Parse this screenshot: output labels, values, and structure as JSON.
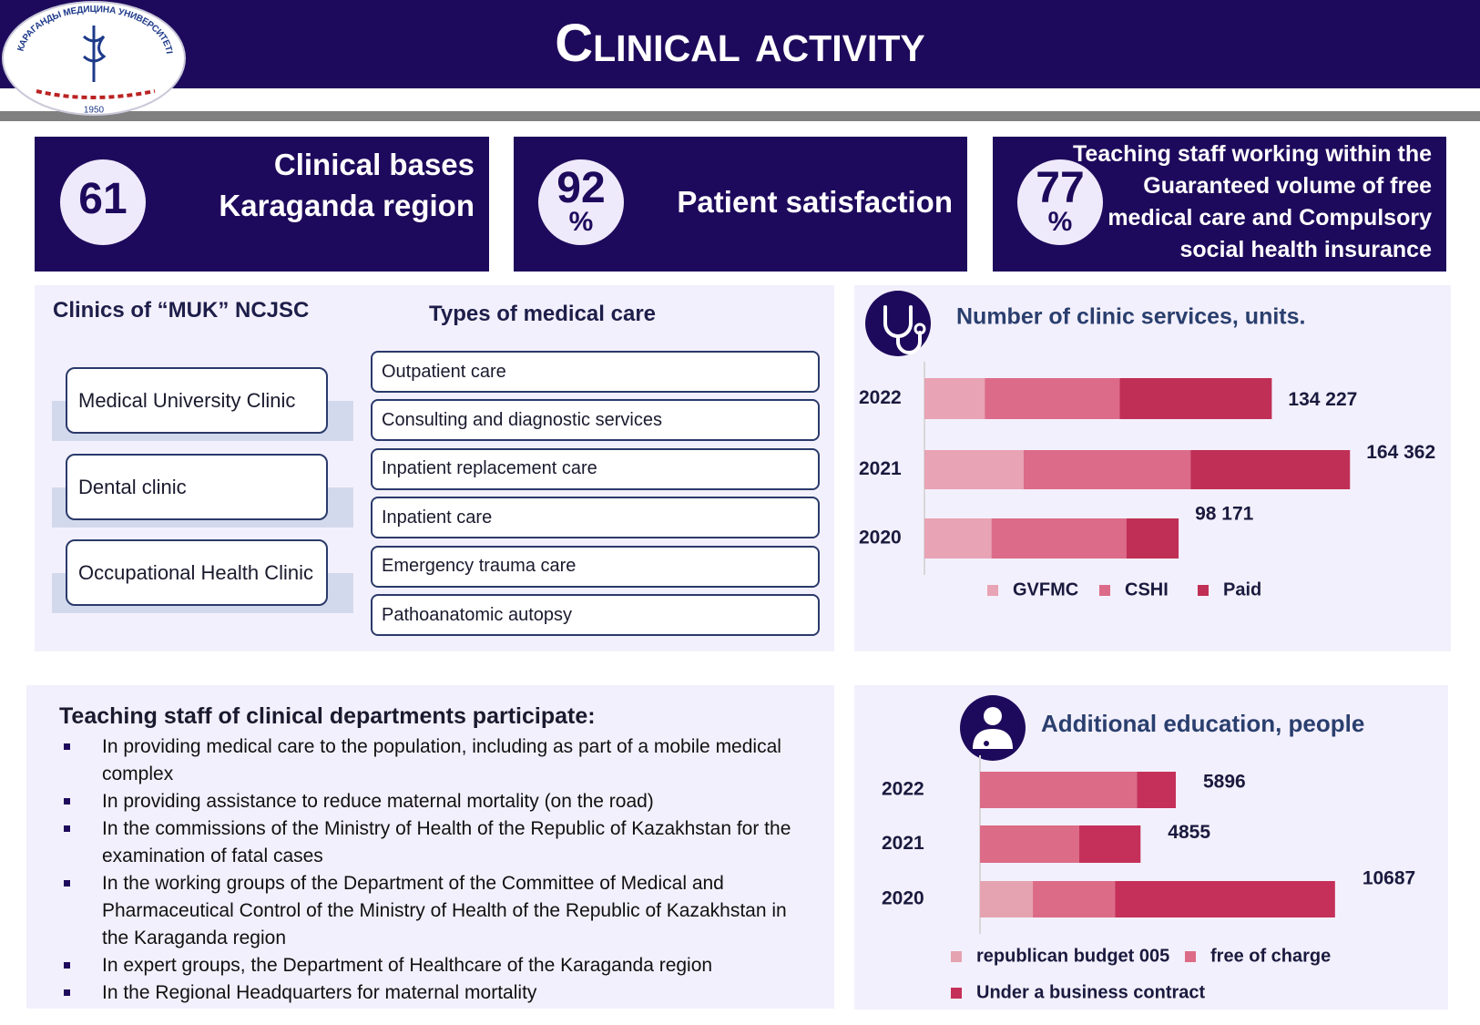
{
  "header": {
    "title": "Clinical activity",
    "logo_text": "КАРАГАНДЫ МЕДИЦИНА УНИВЕРСИТЕТІ",
    "logo_year": "1950"
  },
  "kpis": [
    {
      "value": 61,
      "lines": [
        "Clinical bases",
        "Karaganda region"
      ]
    },
    {
      "value": 92,
      "unit": "%",
      "lines": [
        "Patient satisfaction"
      ]
    },
    {
      "value": 77,
      "unit": "%",
      "lines": [
        "Teaching staff working within the",
        "Guaranteed volume of free",
        "medical care and Compulsory",
        "social health insurance"
      ]
    }
  ],
  "clinics": {
    "title": "Clinics of “MUK” NCJSC",
    "items": [
      "Medical University Clinic",
      "Dental clinic",
      "Occupational Health Clinic"
    ]
  },
  "care": {
    "title": "Types of medical care",
    "items": [
      "Outpatient care",
      "Consulting and diagnostic services",
      "Inpatient replacement care",
      "Inpatient care",
      "Emergency trauma care",
      "Pathoanatomic autopsy"
    ]
  },
  "staff": {
    "title": "Teaching staff of clinical departments participate:",
    "items": [
      "In providing medical care to the population, including as part of a mobile medical complex",
      "In providing assistance to reduce maternal mortality (on the road)",
      "In the commissions of the Ministry of Health of the Republic of Kazakhstan for the examination of fatal cases",
      "In the working groups of the Department of the Committee of Medical and Pharmaceutical Control of the Ministry of Health of the Republic of Kazakhstan in the Karaganda region",
      "In expert groups, the Department of Healthcare of the Karaganda region",
      "In the Regional Headquarters for maternal mortality"
    ]
  },
  "chart_data": [
    {
      "type": "bar",
      "orientation": "horizontal",
      "stacked": true,
      "title": "Number of clinic services, units.",
      "categories": [
        "2022",
        "2021",
        "2020"
      ],
      "series": [
        {
          "name": "GVFMC",
          "color": "#e8a3b4",
          "values": [
            23300,
            38300,
            25900
          ]
        },
        {
          "name": "CSHI",
          "color": "#dc6b89",
          "values": [
            52100,
            64500,
            52100
          ]
        },
        {
          "name": "Paid",
          "color": "#c02f55",
          "values": [
            58800,
            61600,
            20200
          ]
        }
      ],
      "total_labels": [
        "134 227",
        "164 362",
        "98 171"
      ],
      "xlim": [
        0,
        190000
      ]
    },
    {
      "type": "bar",
      "orientation": "horizontal",
      "stacked": true,
      "title": "Additional education, people",
      "categories": [
        "2022",
        "2021",
        "2020"
      ],
      "series": [
        {
          "name": "republican budget 005",
          "color": "#e5a3b1",
          "values": [
            0,
            0,
            1590
          ]
        },
        {
          "name": "free of charge",
          "color": "#dc6b87",
          "values": [
            4720,
            2980,
            2470
          ]
        },
        {
          "name": "Under a business contract",
          "color": "#c5305a",
          "values": [
            1170,
            1850,
            6620
          ]
        }
      ],
      "total_labels": [
        "5896",
        "4855",
        "10687"
      ],
      "xlim": [
        0,
        12000
      ]
    }
  ]
}
